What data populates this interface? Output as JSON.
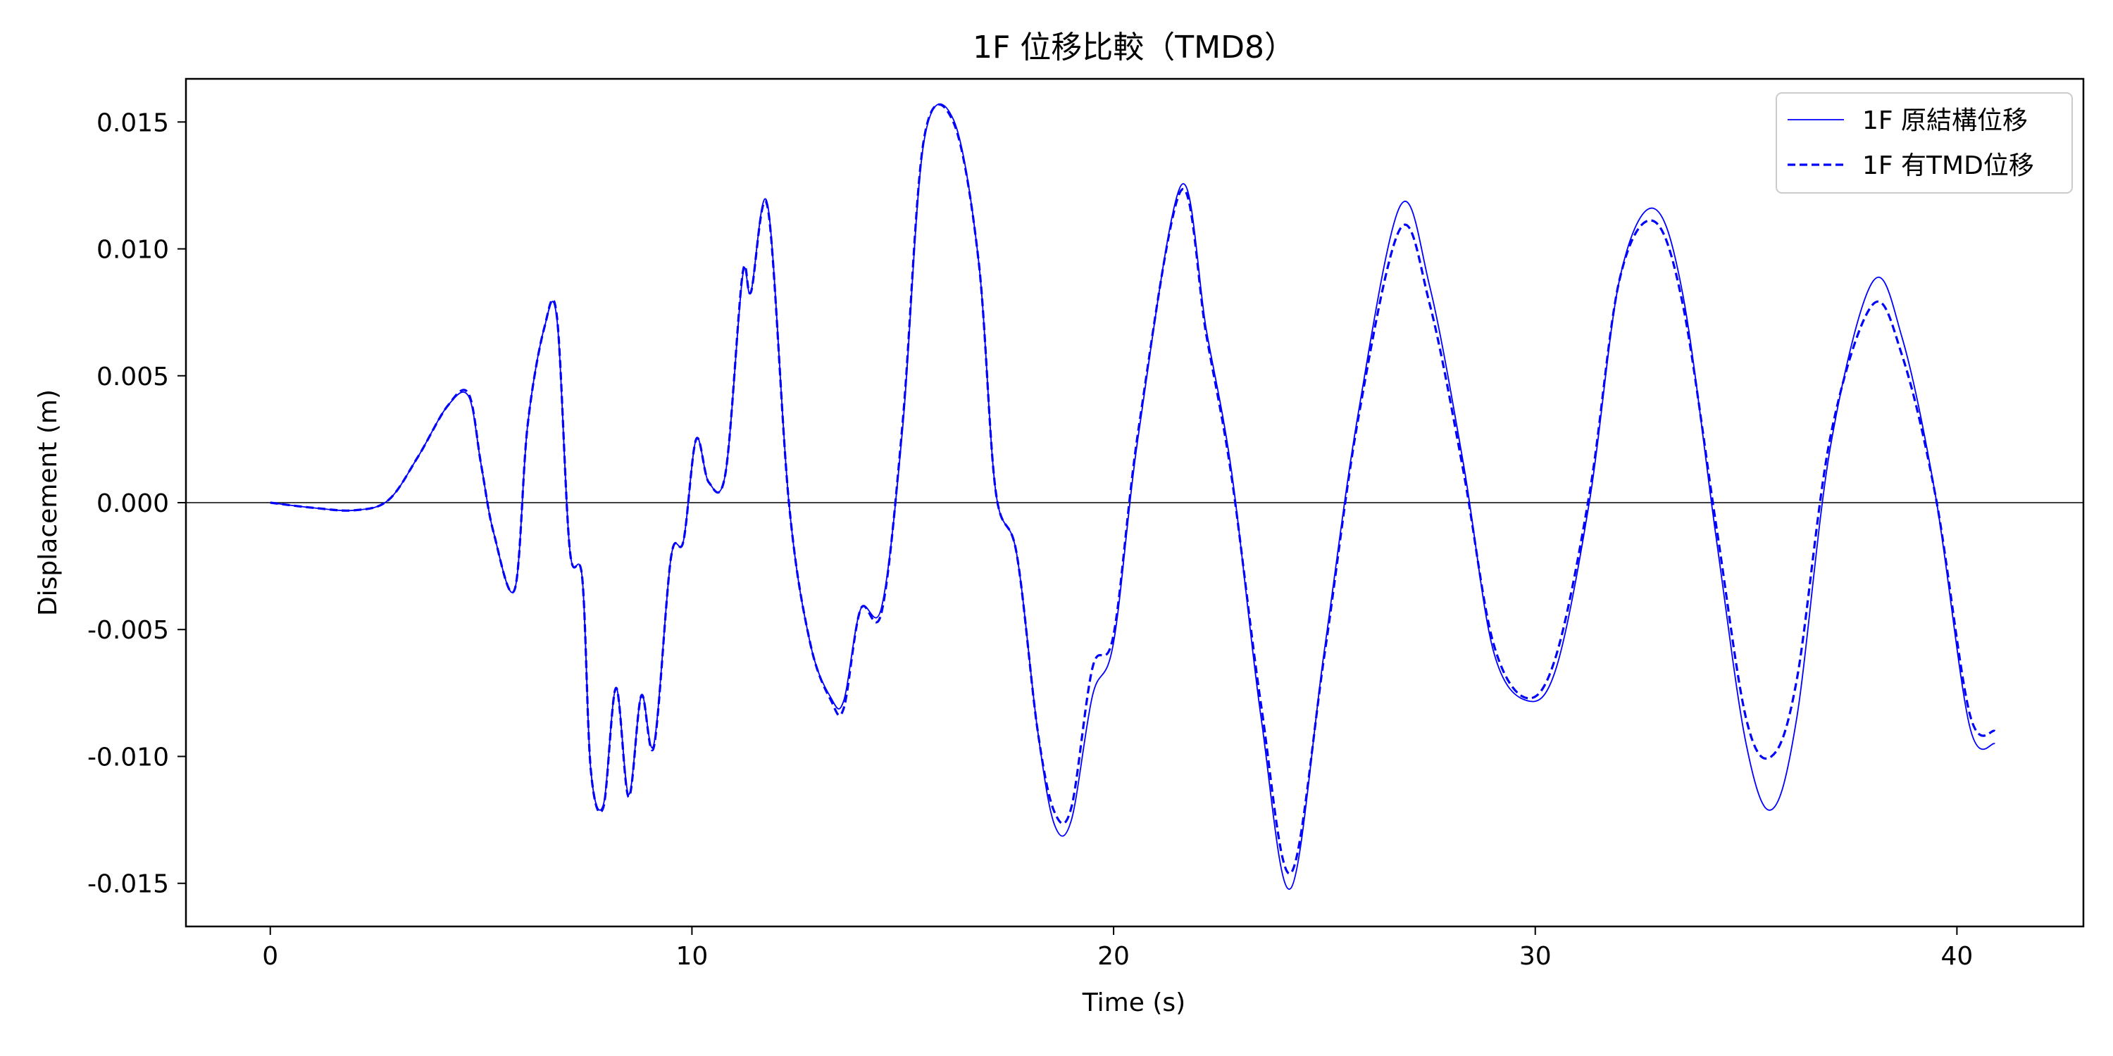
{
  "chart_data": {
    "type": "line",
    "title": "1F 位移比較（TMD8）",
    "xlabel": "Time (s)",
    "ylabel": "Displacement (m)",
    "xlim": [
      -2,
      43
    ],
    "ylim": [
      -0.0167,
      0.0167
    ],
    "x_ticks": [
      0,
      10,
      20,
      30,
      40
    ],
    "x_tick_labels": [
      "0",
      "10",
      "20",
      "30",
      "40"
    ],
    "y_ticks": [
      -0.015,
      -0.01,
      -0.005,
      0.0,
      0.005,
      0.01,
      0.015
    ],
    "y_tick_labels": [
      "-0.015",
      "-0.010",
      "-0.005",
      "0.000",
      "0.005",
      "0.010",
      "0.015"
    ],
    "zero_line": true,
    "grid": false,
    "legend_position": "top-right",
    "colors": {
      "series": "#0000ff",
      "axes": "#000000",
      "zero_line": "#000000"
    },
    "series": [
      {
        "name": "1F 原結構位移",
        "style": "solid",
        "x": [
          0,
          1,
          2,
          2.8,
          3.5,
          4.2,
          4.7,
          5.0,
          5.3,
          5.8,
          6.1,
          6.5,
          6.8,
          7.1,
          7.4,
          7.6,
          7.9,
          8.2,
          8.5,
          8.8,
          9.1,
          9.5,
          9.8,
          10.1,
          10.4,
          10.8,
          11.2,
          11.4,
          11.8,
          12.3,
          12.8,
          13.3,
          13.6,
          14.0,
          14.5,
          15.0,
          15.5,
          16.2,
          16.8,
          17.2,
          17.7,
          18.2,
          18.6,
          19.0,
          19.5,
          20.0,
          20.6,
          21.6,
          22.2,
          22.8,
          23.5,
          24.2,
          25.0,
          25.8,
          26.8,
          27.5,
          28.3,
          29.0,
          29.8,
          30.5,
          31.3,
          32.0,
          32.8,
          33.5,
          34.3,
          35.0,
          35.6,
          36.2,
          37.0,
          38.0,
          38.7,
          39.5,
          40.3,
          40.9
        ],
        "y": [
          0,
          -0.0002,
          -0.0003,
          0.0001,
          0.0018,
          0.0038,
          0.0042,
          0.0015,
          -0.0012,
          -0.0034,
          0.003,
          0.0069,
          0.0072,
          -0.0018,
          -0.003,
          -0.0105,
          -0.0119,
          -0.0073,
          -0.0115,
          -0.0076,
          -0.0095,
          -0.0022,
          -0.0015,
          0.0025,
          0.0008,
          0.0012,
          0.0089,
          0.0083,
          0.0117,
          0.0,
          -0.0055,
          -0.0077,
          -0.0078,
          -0.0042,
          -0.0041,
          0.003,
          0.0142,
          0.0151,
          0.0095,
          0.0005,
          -0.002,
          -0.009,
          -0.0127,
          -0.0125,
          -0.0076,
          -0.0055,
          0.0028,
          0.0125,
          0.0068,
          0.0012,
          -0.0085,
          -0.0152,
          -0.0058,
          0.0035,
          0.0117,
          0.0085,
          0.0015,
          -0.0058,
          -0.0078,
          -0.0065,
          0.0002,
          0.0088,
          0.0116,
          0.0082,
          -0.0015,
          -0.0095,
          -0.0121,
          -0.0085,
          0.0022,
          0.0087,
          0.0065,
          0.0002,
          -0.0088,
          -0.0095
        ]
      },
      {
        "name": "1F 有TMD位移",
        "style": "dashed",
        "x": [
          0,
          1,
          2,
          2.8,
          3.5,
          4.2,
          4.7,
          5.0,
          5.3,
          5.8,
          6.1,
          6.5,
          6.8,
          7.1,
          7.4,
          7.6,
          7.9,
          8.2,
          8.5,
          8.8,
          9.1,
          9.5,
          9.8,
          10.1,
          10.4,
          10.8,
          11.2,
          11.4,
          11.8,
          12.3,
          12.8,
          13.3,
          13.6,
          14.0,
          14.5,
          15.0,
          15.5,
          16.2,
          16.8,
          17.2,
          17.7,
          18.2,
          18.6,
          19.0,
          19.5,
          20.0,
          20.6,
          21.6,
          22.2,
          22.8,
          23.5,
          24.2,
          25.0,
          25.8,
          26.8,
          27.5,
          28.3,
          29.0,
          29.8,
          30.5,
          31.3,
          32.0,
          32.8,
          33.5,
          34.3,
          35.0,
          35.6,
          36.2,
          37.0,
          38.0,
          38.7,
          39.5,
          40.3,
          40.9
        ],
        "y": [
          0,
          -0.0002,
          -0.0003,
          0.0001,
          0.0018,
          0.0038,
          0.0043,
          0.0015,
          -0.0012,
          -0.0034,
          0.003,
          0.0069,
          0.0073,
          -0.0018,
          -0.003,
          -0.0105,
          -0.012,
          -0.0073,
          -0.0116,
          -0.0076,
          -0.0096,
          -0.0022,
          -0.0015,
          0.0025,
          0.0008,
          0.0012,
          0.009,
          0.0083,
          0.0116,
          0.0,
          -0.0055,
          -0.0078,
          -0.0081,
          -0.0042,
          -0.0043,
          0.0032,
          0.0143,
          0.015,
          0.0095,
          0.0005,
          -0.002,
          -0.009,
          -0.0122,
          -0.012,
          -0.0065,
          -0.0052,
          0.003,
          0.0123,
          0.0066,
          0.001,
          -0.008,
          -0.0146,
          -0.006,
          0.0033,
          0.0108,
          0.0078,
          0.0012,
          -0.0055,
          -0.0077,
          -0.006,
          0.0005,
          0.0088,
          0.0111,
          0.0078,
          -0.001,
          -0.0085,
          -0.01,
          -0.007,
          0.0026,
          0.0078,
          0.0058,
          0.0002,
          -0.0083,
          -0.009
        ]
      }
    ]
  }
}
